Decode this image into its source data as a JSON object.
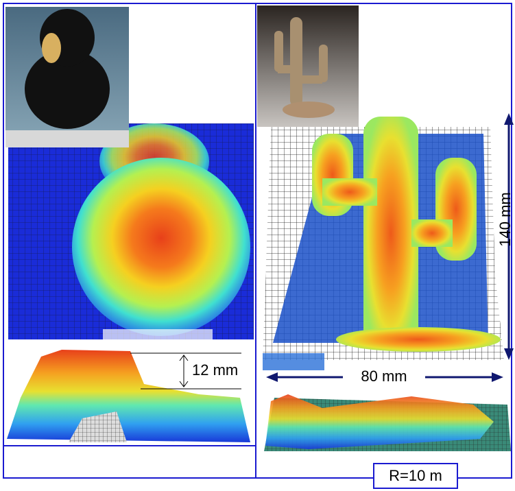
{
  "annotations": {
    "height": "12 mm",
    "length": "140 mm",
    "width": "80 mm",
    "range": "R=10 m"
  }
}
